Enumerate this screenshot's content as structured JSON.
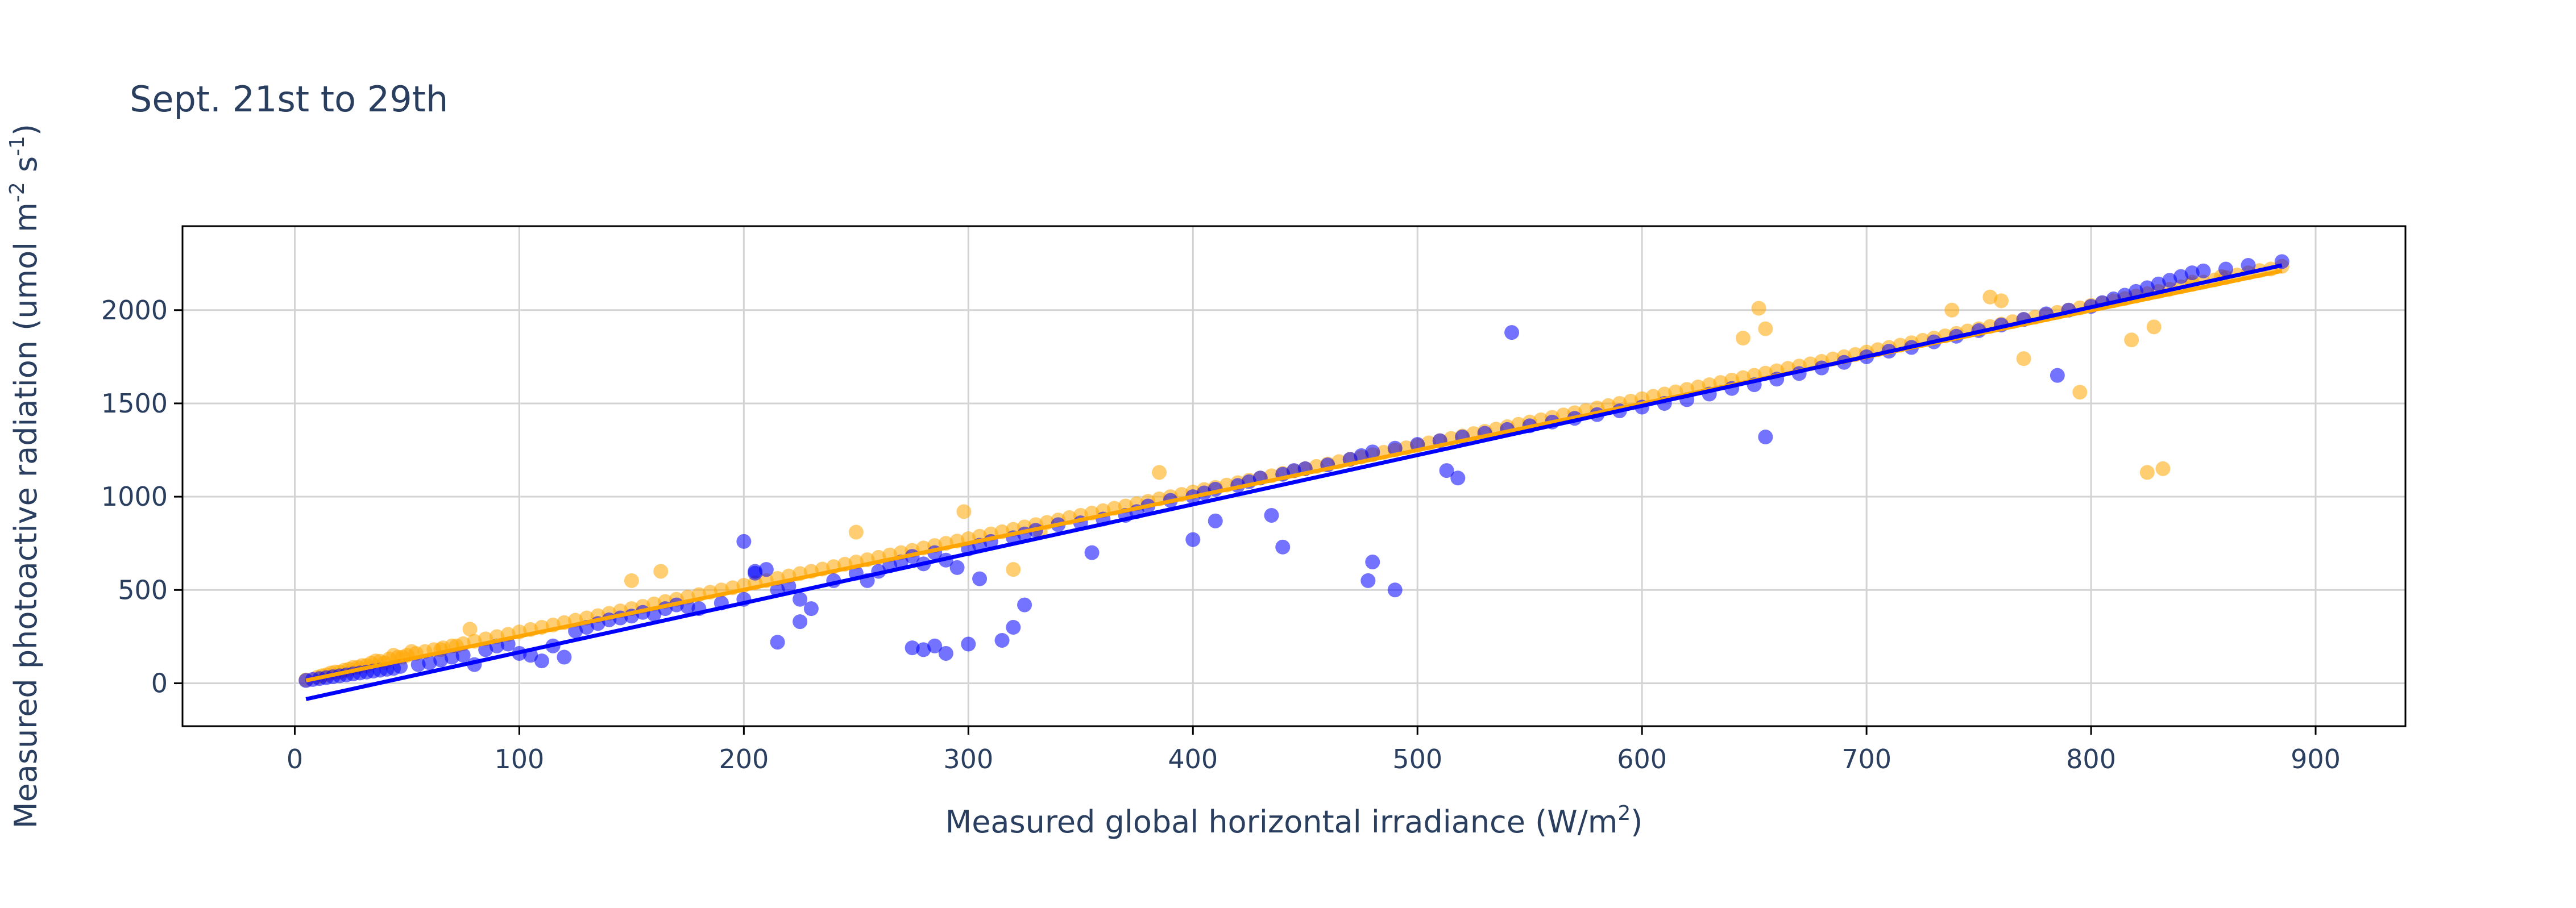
{
  "chart_data": {
    "type": "scatter",
    "title": "Sept. 21st to 29th",
    "xlabel": {
      "prefix": "Measured global horizontal irradiance (W/m",
      "sup": "2",
      "suffix": ")"
    },
    "ylabel": {
      "prefix": "Measured photoactive radiation (umol m",
      "sup1": "-2",
      "mid": " s",
      "sup2": "-1",
      "suffix": ")"
    },
    "xlim": [
      -50,
      940
    ],
    "ylim": [
      -230,
      2450
    ],
    "x_ticks": [
      0,
      100,
      200,
      300,
      400,
      500,
      600,
      700,
      800,
      900
    ],
    "y_ticks": [
      0,
      500,
      1000,
      1500,
      2000
    ],
    "grid": true,
    "legend": "none",
    "colors": {
      "orange": "#ffa500",
      "blue": "#0000ff",
      "grid": "#d3d3d3",
      "text": "#2a3f5f"
    },
    "fit_lines": [
      {
        "color": "#ffa500",
        "x": [
          5,
          885
        ],
        "y": [
          15,
          2210
        ]
      },
      {
        "color": "#0000ff",
        "x": [
          5,
          885
        ],
        "y": [
          -85,
          2240
        ]
      }
    ],
    "series": [
      {
        "color": "#ffa500",
        "x": [
          5,
          10,
          14,
          18,
          22,
          26,
          30,
          34,
          38,
          42,
          46,
          50,
          54,
          58,
          62,
          66,
          70,
          75,
          80,
          85,
          90,
          95,
          100,
          105,
          110,
          115,
          120,
          125,
          130,
          135,
          140,
          145,
          150,
          155,
          160,
          165,
          170,
          175,
          180,
          185,
          190,
          195,
          200,
          205,
          210,
          215,
          220,
          225,
          230,
          235,
          240,
          245,
          250,
          255,
          260,
          265,
          270,
          275,
          280,
          285,
          290,
          295,
          300,
          305,
          310,
          315,
          320,
          325,
          330,
          335,
          340,
          345,
          350,
          355,
          360,
          365,
          370,
          375,
          380,
          385,
          390,
          395,
          400,
          405,
          410,
          415,
          420,
          425,
          430,
          435,
          440,
          445,
          450,
          455,
          460,
          465,
          470,
          475,
          480,
          485,
          490,
          495,
          500,
          505,
          510,
          515,
          520,
          525,
          530,
          535,
          540,
          545,
          550,
          555,
          560,
          565,
          570,
          575,
          580,
          585,
          590,
          595,
          600,
          605,
          610,
          615,
          620,
          625,
          630,
          635,
          640,
          645,
          650,
          655,
          660,
          665,
          670,
          675,
          680,
          685,
          690,
          695,
          700,
          705,
          710,
          715,
          720,
          725,
          730,
          735,
          740,
          745,
          750,
          755,
          760,
          765,
          770,
          775,
          780,
          785,
          790,
          795,
          800,
          805,
          810,
          815,
          820,
          825,
          830,
          835,
          840,
          845,
          850,
          855,
          860,
          865,
          870,
          875,
          880,
          885,
          12,
          20,
          28,
          36,
          44,
          52,
          48,
          40,
          32,
          24,
          16,
          65,
          72,
          78,
          150,
          163,
          250,
          298,
          332,
          385,
          320,
          652,
          655,
          645,
          738,
          755,
          760,
          770,
          795,
          818,
          825,
          832,
          828,
          845,
          858
        ],
        "y": [
          18,
          32,
          45,
          60,
          70,
          85,
          95,
          108,
          118,
          130,
          140,
          150,
          160,
          170,
          180,
          190,
          200,
          212,
          225,
          238,
          250,
          262,
          275,
          288,
          300,
          312,
          325,
          338,
          350,
          362,
          375,
          388,
          400,
          412,
          425,
          438,
          450,
          462,
          475,
          488,
          500,
          512,
          525,
          538,
          550,
          562,
          575,
          588,
          600,
          612,
          625,
          638,
          650,
          662,
          675,
          688,
          700,
          712,
          725,
          738,
          750,
          762,
          775,
          788,
          800,
          812,
          825,
          838,
          850,
          862,
          875,
          888,
          900,
          912,
          925,
          938,
          950,
          962,
          975,
          988,
          1000,
          1012,
          1025,
          1038,
          1050,
          1062,
          1075,
          1088,
          1100,
          1112,
          1125,
          1138,
          1150,
          1162,
          1175,
          1188,
          1200,
          1212,
          1225,
          1238,
          1250,
          1262,
          1275,
          1288,
          1300,
          1312,
          1325,
          1338,
          1350,
          1362,
          1375,
          1388,
          1400,
          1412,
          1425,
          1438,
          1450,
          1462,
          1475,
          1488,
          1500,
          1512,
          1525,
          1538,
          1550,
          1562,
          1575,
          1588,
          1600,
          1612,
          1625,
          1638,
          1650,
          1662,
          1675,
          1688,
          1700,
          1712,
          1725,
          1738,
          1750,
          1762,
          1775,
          1788,
          1800,
          1812,
          1825,
          1838,
          1850,
          1862,
          1875,
          1888,
          1900,
          1912,
          1925,
          1938,
          1950,
          1962,
          1975,
          1988,
          2000,
          2012,
          2025,
          2038,
          2050,
          2062,
          2075,
          2088,
          2100,
          2112,
          2125,
          2138,
          2150,
          2162,
          2175,
          2188,
          2200,
          2212,
          2220,
          2235,
          40,
          60,
          85,
          120,
          150,
          170,
          140,
          110,
          95,
          75,
          55,
          180,
          200,
          290,
          550,
          600,
          810,
          920,
          810,
          1130,
          610,
          2010,
          1900,
          1850,
          2000,
          2070,
          2050,
          1740,
          1560,
          1840,
          1130,
          1150,
          1910,
          2150,
          2180
        ]
      },
      {
        "color": "#0000ff",
        "x": [
          5,
          8,
          11,
          14,
          17,
          20,
          23,
          26,
          29,
          32,
          35,
          38,
          41,
          44,
          47,
          55,
          60,
          65,
          70,
          75,
          80,
          85,
          90,
          95,
          100,
          105,
          110,
          115,
          120,
          125,
          130,
          135,
          140,
          145,
          150,
          155,
          160,
          165,
          170,
          175,
          180,
          190,
          200,
          205,
          210,
          215,
          220,
          225,
          230,
          240,
          250,
          255,
          260,
          265,
          270,
          275,
          280,
          285,
          290,
          300,
          305,
          310,
          320,
          325,
          330,
          340,
          350,
          355,
          360,
          370,
          375,
          380,
          390,
          400,
          405,
          410,
          420,
          425,
          430,
          440,
          445,
          450,
          460,
          470,
          475,
          480,
          490,
          500,
          510,
          520,
          530,
          540,
          550,
          560,
          570,
          580,
          590,
          600,
          610,
          620,
          630,
          640,
          650,
          660,
          670,
          680,
          690,
          700,
          710,
          720,
          730,
          740,
          750,
          760,
          770,
          780,
          790,
          800,
          805,
          810,
          815,
          820,
          825,
          830,
          835,
          840,
          845,
          850,
          860,
          870,
          885,
          280,
          285,
          290,
          300,
          315,
          320,
          325,
          305,
          295,
          215,
          205,
          225,
          275,
          200,
          410,
          400,
          435,
          440,
          480,
          478,
          490,
          542,
          655,
          785,
          513,
          518
        ],
        "y": [
          15,
          20,
          25,
          30,
          35,
          40,
          45,
          50,
          55,
          60,
          65,
          70,
          75,
          80,
          90,
          100,
          110,
          125,
          140,
          150,
          100,
          180,
          200,
          210,
          160,
          150,
          120,
          200,
          140,
          280,
          300,
          320,
          340,
          350,
          360,
          380,
          370,
          400,
          420,
          410,
          400,
          430,
          450,
          600,
          610,
          500,
          520,
          450,
          400,
          550,
          590,
          550,
          600,
          630,
          650,
          680,
          640,
          700,
          660,
          720,
          740,
          760,
          780,
          800,
          820,
          850,
          860,
          700,
          880,
          900,
          920,
          950,
          980,
          1000,
          1020,
          1040,
          1060,
          1080,
          1100,
          1120,
          1140,
          1150,
          1170,
          1200,
          1220,
          1240,
          1260,
          1280,
          1300,
          1320,
          1340,
          1360,
          1380,
          1400,
          1420,
          1440,
          1460,
          1480,
          1500,
          1520,
          1550,
          1580,
          1600,
          1630,
          1660,
          1690,
          1720,
          1750,
          1780,
          1800,
          1830,
          1860,
          1890,
          1920,
          1950,
          1980,
          2000,
          2020,
          2040,
          2060,
          2080,
          2100,
          2120,
          2140,
          2160,
          2180,
          2200,
          2210,
          2220,
          2240,
          2260,
          180,
          200,
          160,
          210,
          230,
          300,
          420,
          560,
          620,
          220,
          590,
          330,
          190,
          760,
          870,
          770,
          900,
          730,
          650,
          550,
          500,
          1880,
          1320,
          1650,
          1140,
          1100
        ]
      }
    ]
  }
}
